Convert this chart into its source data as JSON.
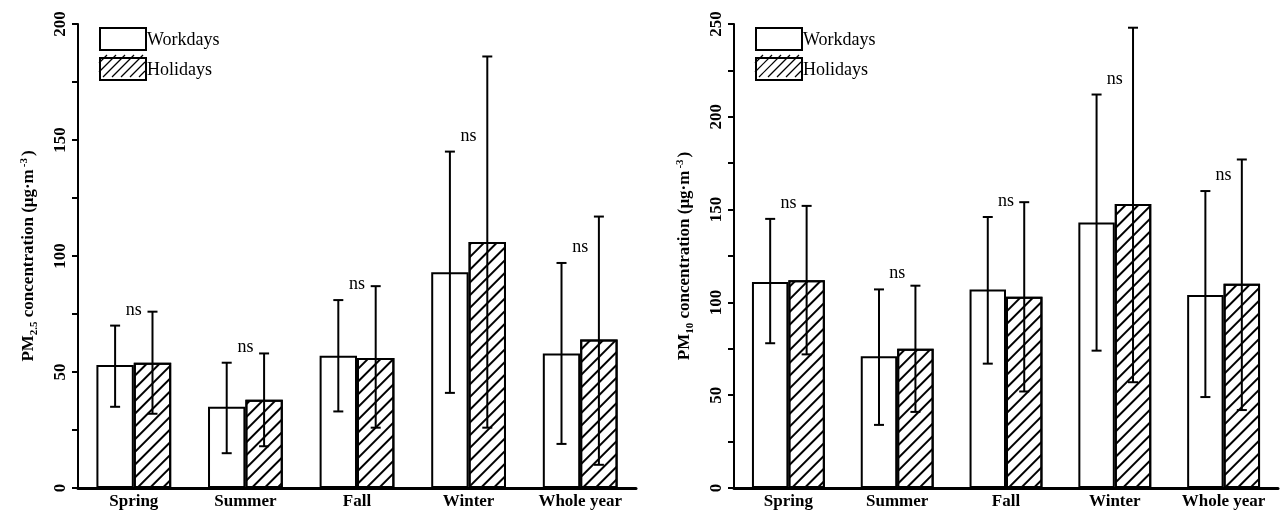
{
  "chart_data": [
    {
      "type": "bar",
      "ylabel": "PM$_{2.5}$ concentration (μg·m$^{-3}$)",
      "categories": [
        "Spring",
        "Summer",
        "Fall",
        "Winter",
        "Whole year"
      ],
      "series": [
        {
          "name": "Workdays",
          "color": "#ffffff",
          "values": [
            53,
            35,
            57,
            93,
            58
          ],
          "errors": [
            [
              35,
              70
            ],
            [
              15,
              54
            ],
            [
              33,
              81
            ],
            [
              41,
              145
            ],
            [
              19,
              97
            ]
          ]
        },
        {
          "name": "Holidays",
          "color": "#ffffff",
          "values": [
            54,
            38,
            56,
            106,
            64
          ],
          "errors": [
            [
              32,
              76
            ],
            [
              18,
              58
            ],
            [
              26,
              87
            ],
            [
              26,
              186
            ],
            [
              10,
              117
            ]
          ]
        }
      ],
      "ylim": [
        0,
        200
      ],
      "yticks": [
        0,
        {
          "value": 25,
          "label": null
        },
        50,
        {
          "value": 75,
          "label": null
        },
        100,
        {
          "value": 125,
          "label": null
        },
        150,
        {
          "value": 175,
          "label": null
        },
        200
      ],
      "grid": false,
      "legend": "top left",
      "annotations": [
        "ns",
        "ns",
        "ns",
        "ns",
        "ns"
      ]
    },
    {
      "type": "bar",
      "ylabel": "PM$_{10}$ concentration (μg·m$^{-3}$)",
      "categories": [
        "Spring",
        "Summer",
        "Fall",
        "Winter",
        "Whole year"
      ],
      "series": [
        {
          "name": "Workdays",
          "color": "#ffffff",
          "values": [
            111,
            71,
            107,
            143,
            104
          ],
          "errors": [
            [
              78,
              145
            ],
            [
              34,
              107
            ],
            [
              67,
              146
            ],
            [
              74,
              212
            ],
            [
              49,
              160
            ]
          ]
        },
        {
          "name": "Holidays",
          "color": "#ffffff",
          "values": [
            112,
            75,
            103,
            153,
            110
          ],
          "errors": [
            [
              72,
              152
            ],
            [
              41,
              109
            ],
            [
              52,
              154
            ],
            [
              57,
              248
            ],
            [
              42,
              177
            ]
          ]
        }
      ],
      "ylim": [
        0,
        250
      ],
      "yticks": [
        0,
        {
          "value": 25,
          "label": null
        },
        50,
        {
          "value": 75,
          "label": null
        },
        100,
        {
          "value": 125,
          "label": null
        },
        150,
        {
          "value": 175,
          "label": null
        },
        200,
        {
          "value": 225,
          "label": null
        },
        250
      ],
      "grid": false,
      "legend": "top left",
      "annotations": [
        "ns",
        "ns",
        "ns",
        "ns",
        "ns"
      ]
    }
  ]
}
